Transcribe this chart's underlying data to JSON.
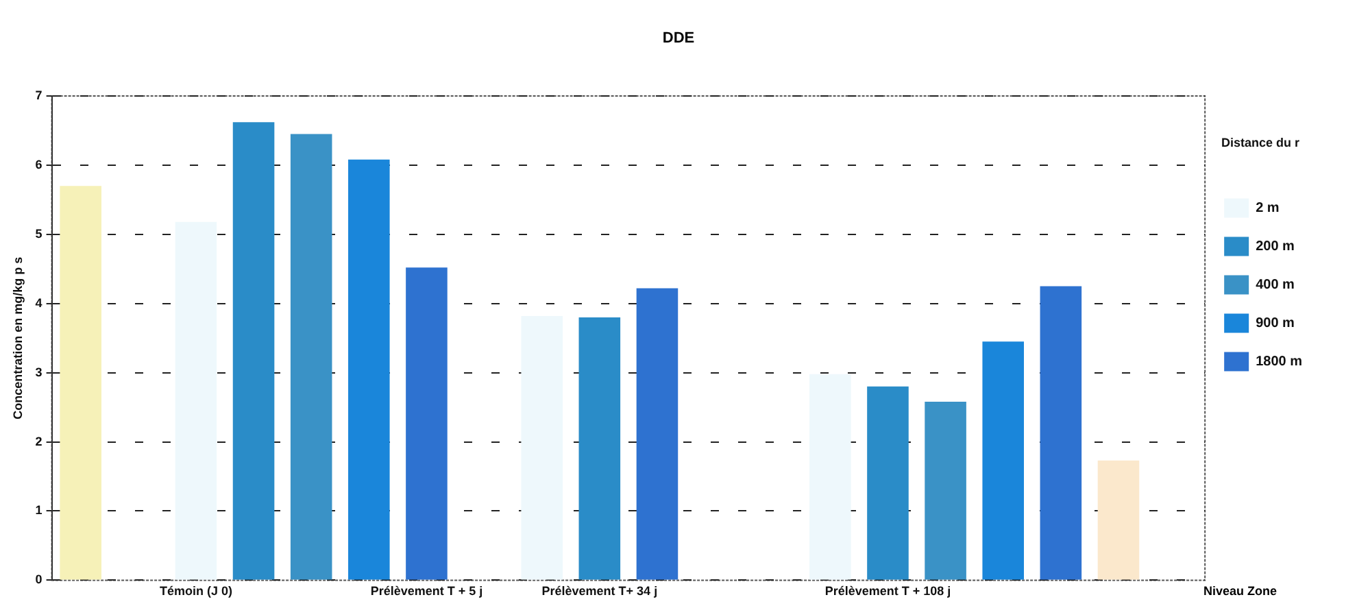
{
  "chart_data": {
    "type": "bar",
    "title": "DDE",
    "ylabel": "Concentration en mg/kg p s",
    "legend_title": "Distance du r",
    "categories": [
      null,
      null,
      "Témoin (J 0)",
      null,
      null,
      null,
      "Prélèvement T + 5 j",
      null,
      null,
      "Prélèvement T+ 34 j",
      null,
      null,
      null,
      null,
      "Prélèvement T + 108 j",
      null,
      null,
      null,
      null,
      null
    ],
    "series": [
      {
        "color": "#f6f1b8",
        "values": [
          5.7,
          null,
          null,
          null,
          null,
          null,
          null,
          null,
          null,
          null,
          null,
          null,
          null,
          null,
          null,
          null,
          null,
          null,
          null,
          null
        ]
      },
      {
        "name": "2 m",
        "color": "#eef8fc",
        "values": [
          null,
          null,
          5.18,
          null,
          null,
          null,
          null,
          null,
          3.82,
          null,
          null,
          null,
          null,
          2.98,
          null,
          null,
          null,
          null,
          null,
          null
        ]
      },
      {
        "name": "200 m",
        "color": "#2a8cc8",
        "values": [
          null,
          null,
          null,
          6.62,
          null,
          null,
          null,
          null,
          null,
          3.8,
          null,
          null,
          null,
          null,
          2.8,
          null,
          null,
          null,
          null,
          null
        ]
      },
      {
        "name": "400 m",
        "color": "#3a92c6",
        "values": [
          null,
          null,
          null,
          null,
          6.45,
          null,
          null,
          null,
          null,
          null,
          null,
          null,
          null,
          null,
          null,
          2.58,
          null,
          null,
          null,
          null
        ]
      },
      {
        "name": "900 m",
        "color": "#1a86da",
        "values": [
          null,
          null,
          null,
          null,
          null,
          6.08,
          null,
          null,
          null,
          null,
          null,
          null,
          null,
          null,
          null,
          null,
          3.45,
          null,
          null,
          null
        ]
      },
      {
        "name": "1800 m",
        "color": "#2e72d0",
        "values": [
          null,
          null,
          null,
          null,
          null,
          null,
          4.52,
          null,
          null,
          null,
          4.22,
          null,
          null,
          null,
          null,
          null,
          null,
          4.25,
          null,
          null
        ]
      },
      {
        "color": "#fbe8cc",
        "values": [
          null,
          null,
          null,
          null,
          null,
          null,
          null,
          null,
          null,
          null,
          null,
          null,
          null,
          null,
          null,
          null,
          null,
          null,
          1.73,
          null
        ]
      }
    ],
    "ylim": [
      0,
      7
    ],
    "yticks": [
      0,
      1,
      2,
      3,
      4,
      5,
      6,
      7
    ],
    "grid": "y",
    "legend": "right",
    "annotations": [
      "Niveau Zone"
    ]
  }
}
